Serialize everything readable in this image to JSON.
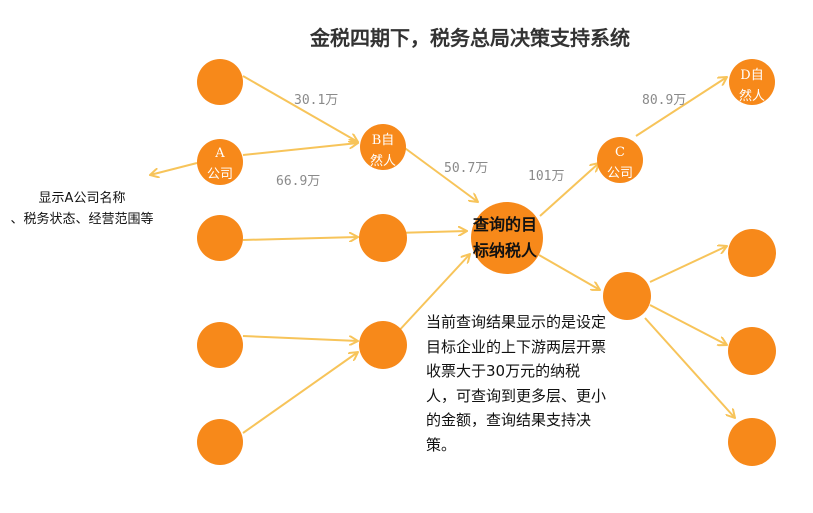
{
  "title": "金税四期下，税务总局决策支持系统",
  "colors": {
    "node": "#F7891A",
    "edge": "#F7C45A"
  },
  "nodes": {
    "a": [
      "A",
      "公司"
    ],
    "b": [
      "B自",
      "然人"
    ],
    "c": [
      "C",
      "公司"
    ],
    "d": [
      "D自",
      "然人"
    ],
    "target": [
      "查询的目",
      "标纳税人"
    ]
  },
  "edge_labels": {
    "l1_b": "30.1万",
    "a_b": "66.9万",
    "b_t": "50.7万",
    "t_c": "101万",
    "c_d": "80.9万"
  },
  "left_note": [
    "显示A公司名称",
    "、税务状态、经营范围等"
  ],
  "description": "当前查询结果显示的是设定目标企业的上下游两层开票收票大于30万元的纳税人，可查询到更多层、更小的金额，查询结果支持决策。"
}
